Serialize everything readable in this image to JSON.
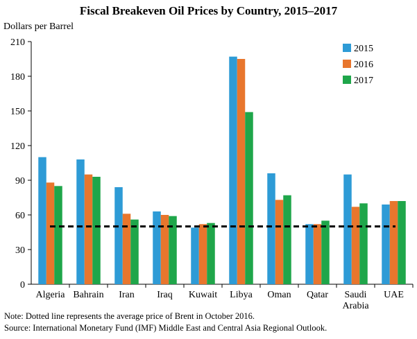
{
  "chart_data": {
    "type": "bar",
    "title": "Fiscal Breakeven Oil Prices by Country, 2015–2017",
    "ylabel": "Dollars per Barrel",
    "xlabel": "",
    "ylim": [
      0,
      210
    ],
    "yticks": [
      0,
      30,
      60,
      90,
      120,
      150,
      180,
      210
    ],
    "categories": [
      [
        "Algeria"
      ],
      [
        "Bahrain"
      ],
      [
        "Iran"
      ],
      [
        "Iraq"
      ],
      [
        "Kuwait"
      ],
      [
        "Libya"
      ],
      [
        "Oman"
      ],
      [
        "Qatar"
      ],
      [
        "Saudi",
        "Arabia"
      ],
      [
        "UAE"
      ]
    ],
    "series": [
      {
        "name": "2015",
        "color": "#2e9bd6",
        "values": [
          110,
          108,
          84,
          63,
          49,
          197,
          96,
          52,
          95,
          69
        ]
      },
      {
        "name": "2016",
        "color": "#e8762d",
        "values": [
          88,
          95,
          61,
          60,
          52,
          195,
          73,
          52,
          67,
          72
        ]
      },
      {
        "name": "2017",
        "color": "#1fa64a",
        "values": [
          85,
          93,
          56,
          59,
          53,
          149,
          77,
          55,
          70,
          72
        ]
      }
    ],
    "reference_line": {
      "value": 50,
      "style": "dashed",
      "color": "#000000"
    },
    "legend_position": "top-right",
    "grid": false
  },
  "notes": [
    "Note: Dotted line represents the average price of Brent in October 2016.",
    "Source: International Monetary Fund (IMF) Middle East and Central Asia Regional Outlook."
  ]
}
